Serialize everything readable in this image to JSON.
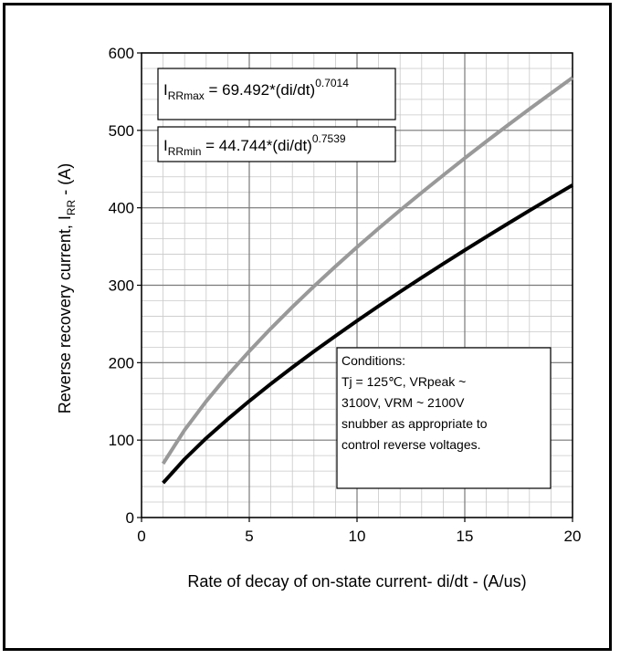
{
  "chart_data": {
    "type": "line",
    "xlabel": "Rate of decay of on-state current- di/dt - (A/us)",
    "ylabel": {
      "main": "Reverse recovery current, I",
      "sub": "RR",
      "tail": " - (A)"
    },
    "xlim": [
      0,
      20
    ],
    "ylim": [
      0,
      600
    ],
    "x_major_ticks": [
      0,
      5,
      10,
      15,
      20
    ],
    "x_tick_labels": [
      "0",
      "5",
      "10",
      "15",
      "20"
    ],
    "y_major_ticks": [
      0,
      100,
      200,
      300,
      400,
      500,
      600
    ],
    "y_tick_labels": [
      "0",
      "100",
      "200",
      "300",
      "400",
      "500",
      "600"
    ],
    "x_minor_step": 1,
    "y_minor_step": 20,
    "grid": true,
    "series": [
      {
        "name": "IRRmax",
        "color": "#999999",
        "formula": {
          "a": 69.492,
          "b": 0.7014
        },
        "x": [
          1,
          2,
          3,
          4,
          5,
          6,
          7,
          8,
          9,
          10,
          11,
          12,
          13,
          14,
          15,
          16,
          17,
          18,
          19,
          20
        ],
        "y": [
          69.5,
          113.0,
          150.1,
          183.7,
          214.8,
          244.1,
          272.0,
          298.6,
          324.3,
          349.2,
          373.3,
          396.8,
          419.7,
          442.1,
          464.1,
          485.6,
          506.7,
          527.5,
          547.9,
          568.0
        ]
      },
      {
        "name": "IRRmin",
        "color": "#000000",
        "formula": {
          "a": 44.744,
          "b": 0.7539
        },
        "x": [
          1,
          2,
          3,
          4,
          5,
          6,
          7,
          8,
          9,
          10,
          11,
          12,
          13,
          14,
          15,
          16,
          17,
          18,
          19,
          20
        ],
        "y": [
          44.7,
          75.5,
          102.4,
          127.1,
          150.4,
          172.6,
          193.9,
          214.5,
          234.5,
          254.0,
          273.0,
          291.6,
          309.8,
          327.7,
          345.3,
          362.6,
          379.6,
          396.4,
          412.9,
          429.3
        ]
      }
    ],
    "annotations": {
      "max_label": {
        "pre": "I",
        "sub": "RRmax",
        "mid": " = 69.492*(di/dt)",
        "sup": "0.7014"
      },
      "min_label": {
        "pre": "I",
        "sub": "RRmin",
        "mid": " = 44.744*(di/dt)",
        "sup": "0.7539"
      },
      "conditions": [
        "Conditions:",
        "Tj = 125℃, VRpeak ~",
        "3100V, VRM ~ 2100V",
        "snubber as appropriate to",
        "control reverse voltages."
      ]
    }
  }
}
